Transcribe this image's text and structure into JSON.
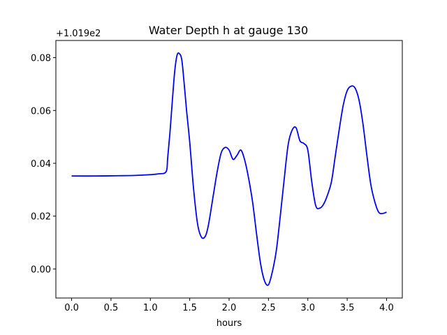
{
  "chart_data": {
    "type": "line",
    "title": "Water Depth h at gauge 130",
    "xlabel": "hours",
    "ylabel": "",
    "offset_text": "+1.019e2",
    "xlim": [
      -0.2,
      4.2
    ],
    "ylim": [
      -0.011,
      0.0865
    ],
    "xticks": [
      0.0,
      0.5,
      1.0,
      1.5,
      2.0,
      2.5,
      3.0,
      3.5,
      4.0
    ],
    "xtick_labels": [
      "0.0",
      "0.5",
      "1.0",
      "1.5",
      "2.0",
      "2.5",
      "3.0",
      "3.5",
      "4.0"
    ],
    "yticks": [
      0.0,
      0.02,
      0.04,
      0.06,
      0.08
    ],
    "ytick_labels": [
      "0.00",
      "0.02",
      "0.04",
      "0.06",
      "0.08"
    ],
    "grid": false,
    "series": [
      {
        "color": "#0000ff",
        "x": [
          0.0,
          0.3,
          0.6,
          0.8,
          1.0,
          1.1,
          1.2,
          1.22,
          1.25,
          1.28,
          1.31,
          1.34,
          1.37,
          1.4,
          1.43,
          1.46,
          1.5,
          1.55,
          1.6,
          1.65,
          1.7,
          1.74,
          1.8,
          1.85,
          1.9,
          1.95,
          2.0,
          2.05,
          2.1,
          2.15,
          2.2,
          2.25,
          2.3,
          2.35,
          2.4,
          2.45,
          2.5,
          2.55,
          2.6,
          2.65,
          2.7,
          2.75,
          2.8,
          2.85,
          2.9,
          2.95,
          3.0,
          3.05,
          3.1,
          3.15,
          3.2,
          3.25,
          3.3,
          3.35,
          3.4,
          3.45,
          3.5,
          3.55,
          3.6,
          3.65,
          3.7,
          3.75,
          3.8,
          3.85,
          3.9,
          3.95,
          4.0
        ],
        "y": [
          0.0352,
          0.0352,
          0.0353,
          0.0354,
          0.0357,
          0.036,
          0.0368,
          0.042,
          0.052,
          0.064,
          0.075,
          0.081,
          0.0815,
          0.079,
          0.07,
          0.06,
          0.048,
          0.03,
          0.017,
          0.012,
          0.0125,
          0.017,
          0.028,
          0.037,
          0.044,
          0.046,
          0.045,
          0.0415,
          0.043,
          0.045,
          0.041,
          0.034,
          0.025,
          0.013,
          0.002,
          -0.0045,
          -0.006,
          -0.001,
          0.007,
          0.02,
          0.034,
          0.047,
          0.0525,
          0.0535,
          0.0485,
          0.0475,
          0.045,
          0.033,
          0.024,
          0.023,
          0.0245,
          0.028,
          0.033,
          0.043,
          0.053,
          0.062,
          0.0675,
          0.0692,
          0.0685,
          0.064,
          0.055,
          0.043,
          0.032,
          0.0255,
          0.0215,
          0.021,
          0.0215
        ]
      }
    ]
  }
}
